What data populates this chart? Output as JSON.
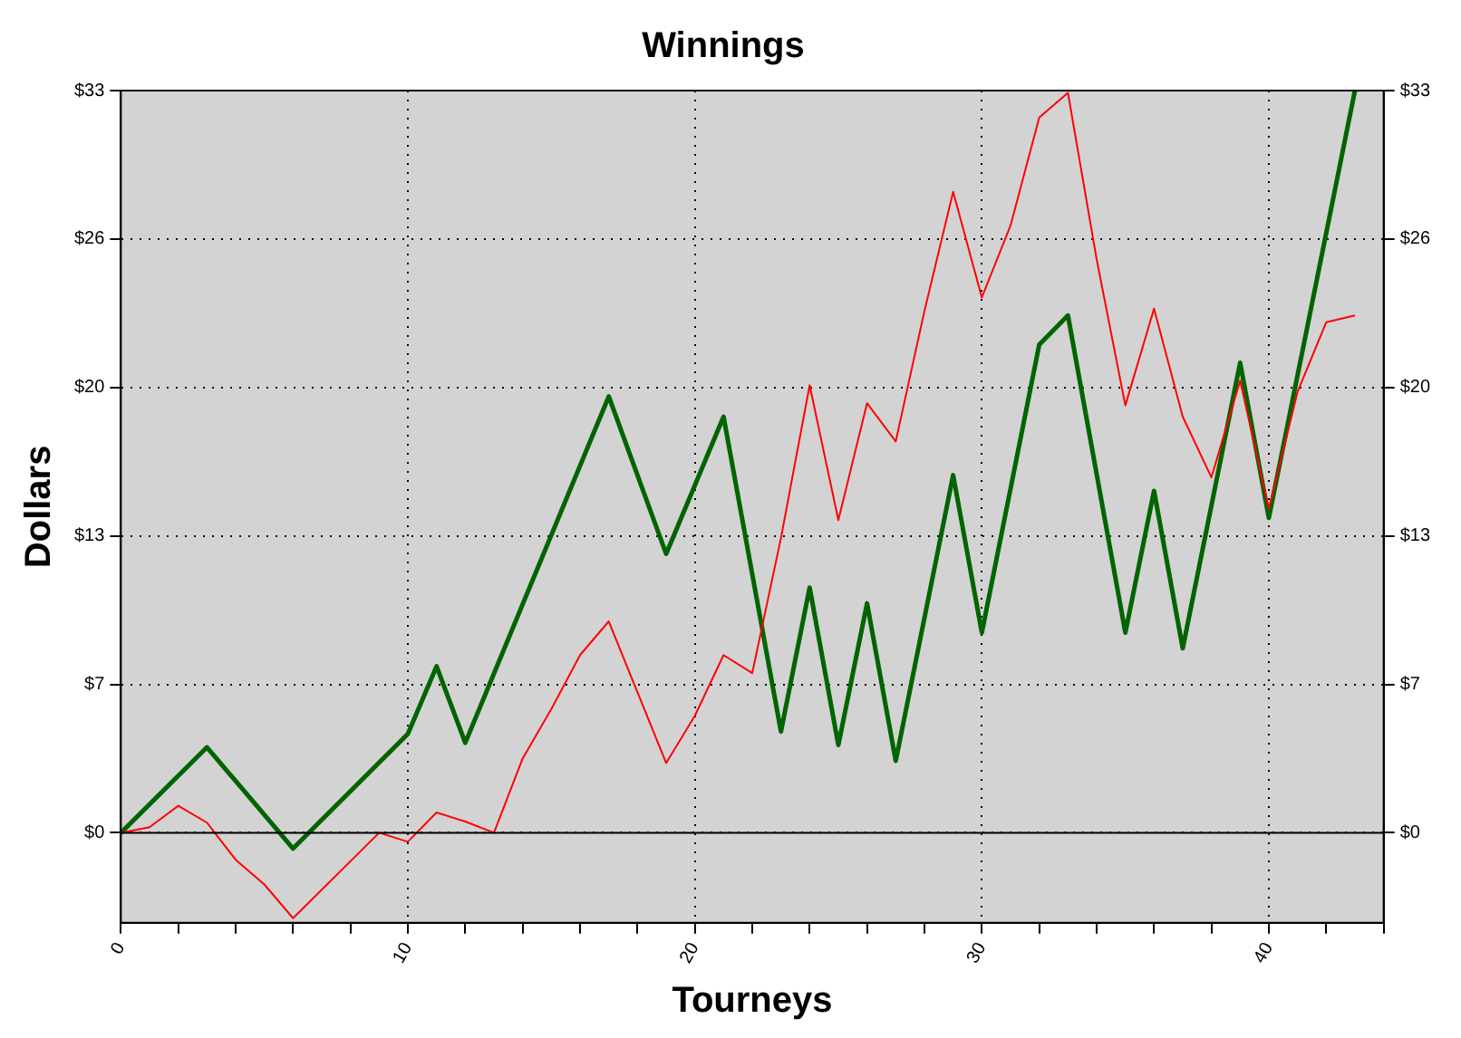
{
  "chart_data": {
    "type": "line",
    "title": "Winnings",
    "xlabel": "Tourneys",
    "ylabel": "Dollars",
    "xlim": [
      0,
      44
    ],
    "xticks": [
      0,
      {
        "value": 2,
        "label": null
      },
      {
        "value": 4,
        "label": null
      },
      {
        "value": 6,
        "label": null
      },
      {
        "value": 8,
        "label": null
      },
      10,
      {
        "value": 12,
        "label": null
      },
      {
        "value": 14,
        "label": null
      },
      {
        "value": 16,
        "label": null
      },
      {
        "value": 18,
        "label": null
      },
      20,
      {
        "value": 22,
        "label": null
      },
      {
        "value": 24,
        "label": null
      },
      {
        "value": 26,
        "label": null
      },
      {
        "value": 28,
        "label": null
      },
      30,
      {
        "value": 32,
        "label": null
      },
      {
        "value": 34,
        "label": null
      },
      {
        "value": 36,
        "label": null
      },
      {
        "value": 38,
        "label": null
      },
      40,
      {
        "value": 42,
        "label": null
      },
      {
        "value": 44,
        "label": null
      }
    ],
    "ylim": [
      -4,
      33
    ],
    "yticks": [
      {
        "value": 0,
        "label": "$0"
      },
      {
        "value": 6.6,
        "label": "$7"
      },
      {
        "value": 13.2,
        "label": "$13"
      },
      {
        "value": 19.8,
        "label": "$20"
      },
      {
        "value": 26.4,
        "label": "$26"
      },
      {
        "value": 33,
        "label": "$33"
      }
    ],
    "y2lim": [
      -4,
      33
    ],
    "y2ticks": [
      {
        "value": 0,
        "label": "$0"
      },
      {
        "value": 6.6,
        "label": "$7"
      },
      {
        "value": 13.2,
        "label": "$13"
      },
      {
        "value": 19.8,
        "label": "$20"
      },
      {
        "value": 26.4,
        "label": "$26"
      },
      {
        "value": 33,
        "label": "$33"
      }
    ],
    "grid": true,
    "legend": false,
    "marker": "none",
    "line_style": "solid",
    "ref_lines": [
      {
        "axis": "y",
        "value": 0,
        "color": "#000000"
      }
    ],
    "series": [
      {
        "color": "#ff0000",
        "x": [
          0,
          1,
          2,
          3,
          4,
          5,
          6,
          9,
          10,
          11,
          12,
          13,
          14,
          15,
          16,
          17,
          19,
          20,
          21,
          22,
          23,
          24,
          25,
          26,
          27,
          28,
          29,
          30,
          31,
          32,
          33,
          34,
          35,
          36,
          37,
          38,
          39,
          40,
          41,
          42,
          43
        ],
        "values": [
          0,
          0.25,
          1.2,
          0.45,
          -1.2,
          -2.3,
          -3.8,
          0,
          -0.4,
          0.9,
          0.5,
          0,
          3.3,
          5.5,
          7.9,
          9.4,
          3.1,
          5.2,
          7.9,
          7.1,
          13.1,
          19.9,
          13.9,
          19.1,
          17.4,
          23.2,
          28.5,
          23.8,
          27.0,
          31.8,
          32.9,
          25.5,
          19.0,
          23.3,
          18.5,
          15.8,
          20.1,
          14.4,
          19.6,
          22.7,
          23.0
        ]
      },
      {
        "color": "#006400",
        "x": [
          0,
          3,
          6,
          10,
          11,
          12,
          17,
          19,
          21,
          23,
          24,
          25,
          26,
          27,
          29,
          30,
          32,
          33,
          35,
          36,
          37,
          39,
          40,
          43
        ],
        "values": [
          0,
          3.8,
          -0.7,
          4.4,
          7.4,
          4.0,
          19.4,
          12.4,
          18.5,
          4.5,
          10.9,
          3.9,
          10.2,
          3.2,
          15.9,
          8.9,
          21.7,
          23.0,
          8.9,
          15.2,
          8.2,
          20.9,
          14.0,
          33
        ]
      }
    ]
  }
}
